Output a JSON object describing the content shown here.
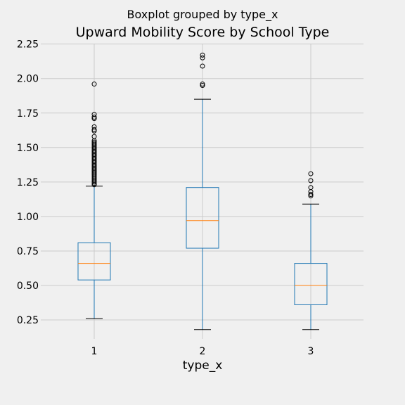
{
  "chart_data": {
    "type": "boxplot",
    "suptitle": "Boxplot grouped by type_x",
    "title": "Upward Mobility Score by School Type",
    "xlabel": "type_x",
    "ylabel": "",
    "categories": [
      "1",
      "2",
      "3"
    ],
    "ylim": [
      0.1,
      2.27
    ],
    "yticks": [
      "0.25",
      "0.50",
      "0.75",
      "1.00",
      "1.25",
      "1.50",
      "1.75",
      "2.00",
      "2.25"
    ],
    "grid": true,
    "boxes": [
      {
        "category": "1",
        "whisker_low": 0.26,
        "q1": 0.54,
        "median": 0.66,
        "q3": 0.81,
        "whisker_high": 1.22,
        "fliers": [
          1.23,
          1.24,
          1.25,
          1.26,
          1.27,
          1.28,
          1.29,
          1.3,
          1.31,
          1.32,
          1.33,
          1.34,
          1.35,
          1.36,
          1.37,
          1.38,
          1.39,
          1.4,
          1.41,
          1.42,
          1.43,
          1.44,
          1.45,
          1.46,
          1.47,
          1.48,
          1.49,
          1.5,
          1.51,
          1.52,
          1.53,
          1.54,
          1.55,
          1.58,
          1.62,
          1.63,
          1.65,
          1.71,
          1.72,
          1.74,
          1.96
        ]
      },
      {
        "category": "2",
        "whisker_low": 0.18,
        "q1": 0.77,
        "median": 0.97,
        "q3": 1.21,
        "whisker_high": 1.85,
        "fliers": [
          1.95,
          1.96,
          2.09,
          2.15,
          2.17
        ]
      },
      {
        "category": "3",
        "whisker_low": 0.18,
        "q1": 0.36,
        "median": 0.5,
        "q3": 0.66,
        "whisker_high": 1.09,
        "fliers": [
          1.15,
          1.16,
          1.18,
          1.21,
          1.26,
          1.31
        ]
      }
    ],
    "colors": {
      "box": "#1f77b4",
      "median": "#ff7f0e",
      "cap": "#000000",
      "grid": "#cbcbcb",
      "background": "#f0f0f0"
    }
  }
}
